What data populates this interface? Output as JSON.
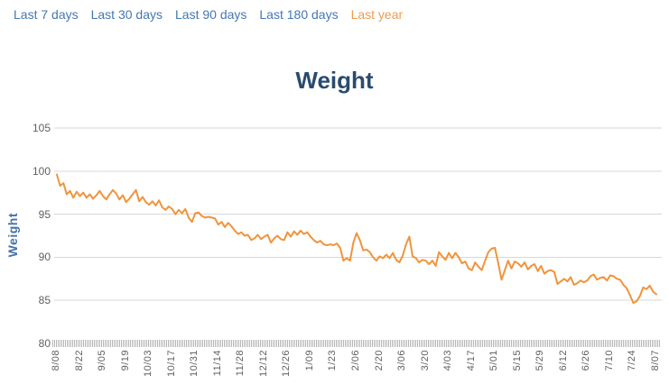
{
  "nav": {
    "items": [
      {
        "label": "Last 7 days",
        "active": false
      },
      {
        "label": "Last 30 days",
        "active": false
      },
      {
        "label": "Last 90 days",
        "active": false
      },
      {
        "label": "Last 180 days",
        "active": false
      },
      {
        "label": "Last year",
        "active": true
      }
    ]
  },
  "colors": {
    "nav_link": "#4577b3",
    "nav_active": "#ef9c50",
    "series_line": "#f0943c",
    "title": "#2a4b6f",
    "y_axis_title": "#4573a7",
    "tick_label": "#606060",
    "gridline": "#d8d8d8"
  },
  "chart_data": {
    "type": "line",
    "title": "Weight",
    "xlabel": "",
    "ylabel": "Weight",
    "ylim": [
      80,
      105
    ],
    "y_ticks": [
      105,
      100,
      95,
      90,
      85,
      80
    ],
    "grid": "horizontal-only",
    "legend": "none",
    "x_tick_interval_days": 14,
    "x_tick_labels": [
      "8/08",
      "8/22",
      "9/05",
      "9/19",
      "10/03",
      "10/17",
      "10/31",
      "11/14",
      "11/28",
      "12/12",
      "12/26",
      "1/09",
      "1/23",
      "2/06",
      "2/20",
      "3/06",
      "3/20",
      "4/03",
      "4/17",
      "5/01",
      "5/15",
      "5/29",
      "6/12",
      "6/26",
      "7/10",
      "7/24",
      "8/07"
    ],
    "series": [
      {
        "name": "Weight",
        "color": "#f0943c",
        "x_step_days": 2,
        "values": [
          99.6,
          98.3,
          98.6,
          97.3,
          97.7,
          96.9,
          97.6,
          97.1,
          97.5,
          96.9,
          97.3,
          96.8,
          97.2,
          97.7,
          97.1,
          96.7,
          97.3,
          97.8,
          97.4,
          96.7,
          97.2,
          96.4,
          96.8,
          97.3,
          97.8,
          96.5,
          97.0,
          96.4,
          96.1,
          96.5,
          96.0,
          96.6,
          95.8,
          95.5,
          95.9,
          95.6,
          95.0,
          95.5,
          95.1,
          95.6,
          94.6,
          94.1,
          95.1,
          95.2,
          94.8,
          94.6,
          94.7,
          94.6,
          94.5,
          93.8,
          94.1,
          93.5,
          94.0,
          93.6,
          93.1,
          92.7,
          92.9,
          92.5,
          92.6,
          92.0,
          92.2,
          92.6,
          92.1,
          92.4,
          92.6,
          91.7,
          92.2,
          92.5,
          92.1,
          92.0,
          92.9,
          92.4,
          93.0,
          92.6,
          93.1,
          92.7,
          92.9,
          92.4,
          92.0,
          91.7,
          91.9,
          91.5,
          91.4,
          91.5,
          91.4,
          91.6,
          91.1,
          89.6,
          89.9,
          89.6,
          91.7,
          92.8,
          92.0,
          90.8,
          90.9,
          90.6,
          90.0,
          89.6,
          90.1,
          89.9,
          90.3,
          89.9,
          90.5,
          89.7,
          89.4,
          90.2,
          91.5,
          92.4,
          90.1,
          89.9,
          89.4,
          89.7,
          89.6,
          89.2,
          89.6,
          89.0,
          90.6,
          90.1,
          89.7,
          90.5,
          89.9,
          90.5,
          90.0,
          89.3,
          89.5,
          88.7,
          88.5,
          89.4,
          88.9,
          88.5,
          89.6,
          90.6,
          91.0,
          91.1,
          89.3,
          87.4,
          88.5,
          89.6,
          88.7,
          89.5,
          89.3,
          88.9,
          89.4,
          88.6,
          89.0,
          89.2,
          88.4,
          89.0,
          88.1,
          88.4,
          88.5,
          88.3,
          86.9,
          87.2,
          87.5,
          87.2,
          87.7,
          86.8,
          87.0,
          87.3,
          87.1,
          87.3,
          87.8,
          88.0,
          87.4,
          87.6,
          87.7,
          87.3,
          87.9,
          87.8,
          87.5,
          87.4,
          86.8,
          86.4,
          85.6,
          84.7,
          84.9,
          85.5,
          86.5,
          86.3,
          86.7,
          86.0,
          85.7
        ]
      }
    ]
  }
}
